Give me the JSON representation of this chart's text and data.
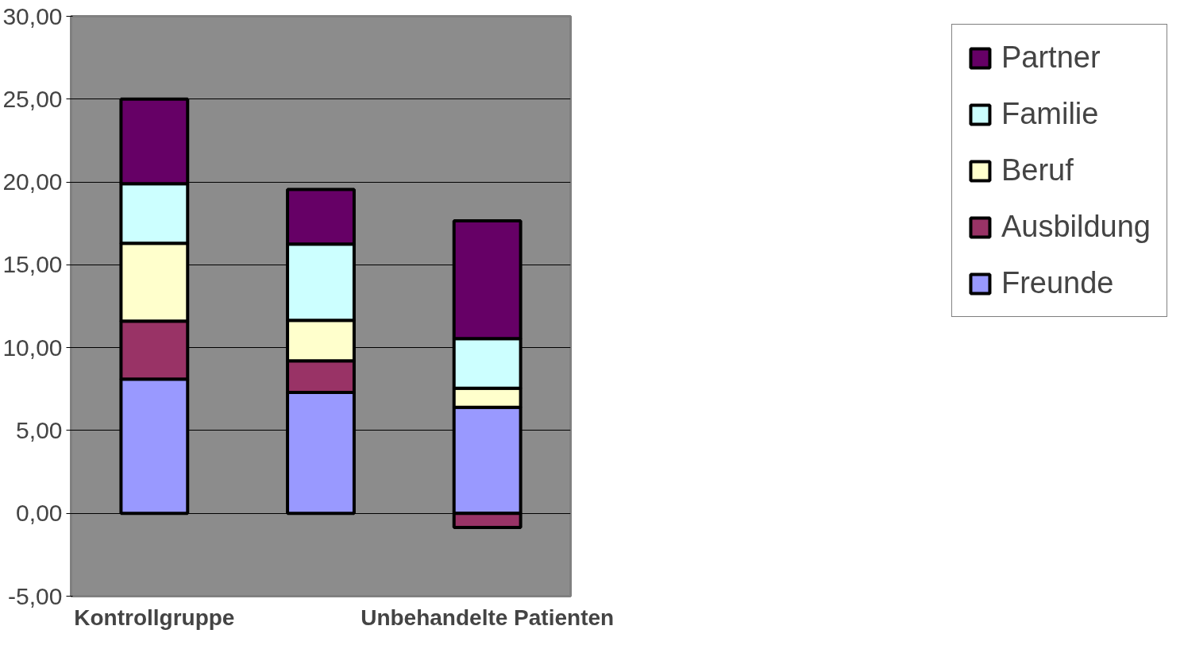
{
  "chart_data": {
    "type": "bar",
    "stacked": true,
    "categories": [
      "Kontrollgruppe",
      null,
      "Unbehandelte Patienten"
    ],
    "series": [
      {
        "name": "Freunde",
        "color": "#9999ff",
        "values": [
          8.1,
          7.3,
          6.4
        ]
      },
      {
        "name": "Ausbildung",
        "color": "#993366",
        "values": [
          3.5,
          1.9,
          -0.85
        ]
      },
      {
        "name": "Beruf",
        "color": "#ffffcc",
        "values": [
          4.7,
          2.45,
          1.15
        ]
      },
      {
        "name": "Familie",
        "color": "#ccffff",
        "values": [
          3.6,
          4.6,
          3.0
        ]
      },
      {
        "name": "Partner",
        "color": "#660066",
        "values": [
          5.1,
          3.3,
          7.1
        ]
      }
    ],
    "ylim": [
      -5,
      30
    ],
    "yticks": [
      {
        "value": -5,
        "label": "-5,00"
      },
      {
        "value": 0,
        "label": "0,00"
      },
      {
        "value": 5,
        "label": "5,00"
      },
      {
        "value": 10,
        "label": "10,00"
      },
      {
        "value": 15,
        "label": "15,00"
      },
      {
        "value": 20,
        "label": "20,00"
      },
      {
        "value": 25,
        "label": "25,00"
      },
      {
        "value": 30,
        "label": "30,00"
      }
    ],
    "grid": "y",
    "legend": "right"
  }
}
